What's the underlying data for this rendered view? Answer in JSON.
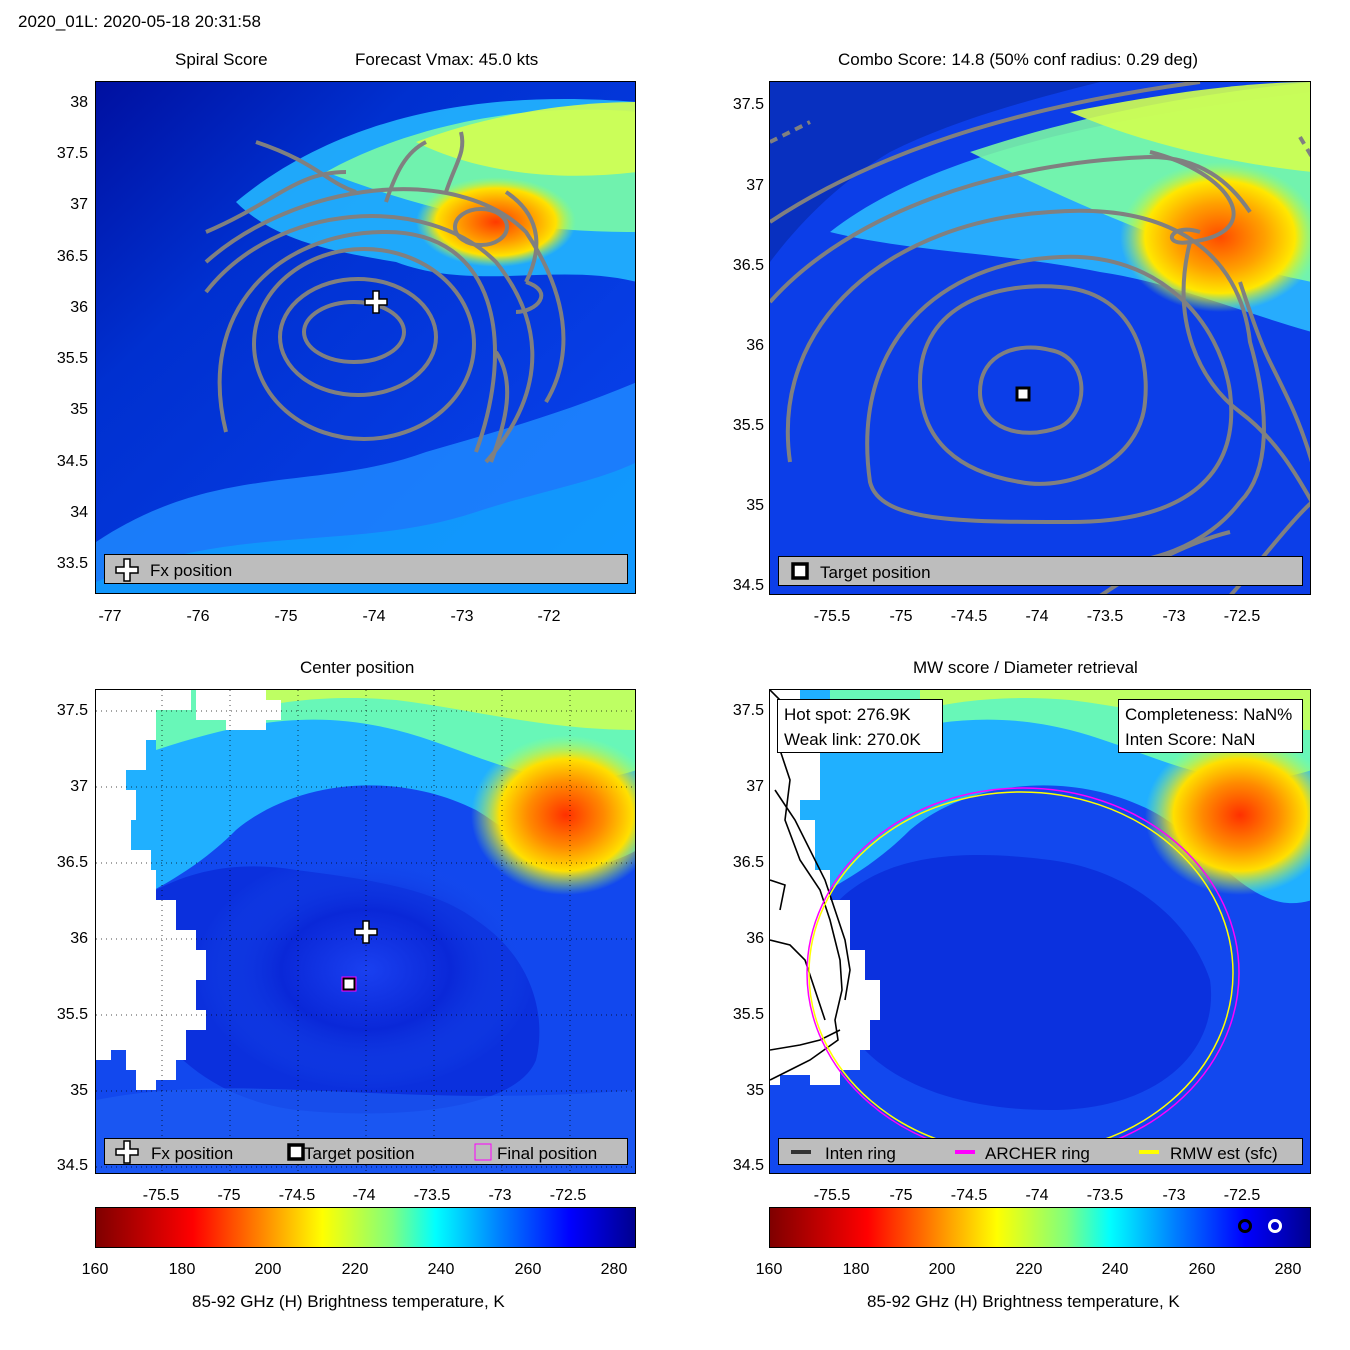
{
  "header": {
    "title": "2020_01L: 2020-05-18 20:31:58"
  },
  "panel_tl": {
    "title_left": "Spiral Score",
    "title_right": "Forecast Vmax: 45.0 kts",
    "yticks": [
      "38",
      "37.5",
      "37",
      "36.5",
      "36",
      "35.5",
      "35",
      "34.5",
      "34",
      "33.5"
    ],
    "xticks": [
      "-77",
      "-76",
      "-75",
      "-74",
      "-73",
      "-72"
    ],
    "legend": "Fx position"
  },
  "panel_tr": {
    "title": "Combo Score: 14.8  (50% conf radius: 0.29 deg)",
    "yticks": [
      "37.5",
      "37",
      "36.5",
      "36",
      "35.5",
      "35",
      "34.5"
    ],
    "xticks": [
      "-75.5",
      "-75",
      "-74.5",
      "-74",
      "-73.5",
      "-73",
      "-72.5"
    ],
    "legend": "Target position"
  },
  "panel_bl": {
    "title": "Center position",
    "yticks": [
      "37.5",
      "37",
      "36.5",
      "36",
      "35.5",
      "35",
      "34.5"
    ],
    "xticks": [
      "-75.5",
      "-75",
      "-74.5",
      "-74",
      "-73.5",
      "-73",
      "-72.5"
    ],
    "legend": [
      "Fx position",
      "Target position",
      "Final position"
    ]
  },
  "panel_br": {
    "title": "MW score / Diameter retrieval",
    "yticks": [
      "37.5",
      "37",
      "36.5",
      "36",
      "35.5",
      "35",
      "34.5"
    ],
    "xticks": [
      "-75.5",
      "-75",
      "-74.5",
      "-74",
      "-73.5",
      "-73",
      "-72.5"
    ],
    "info_left": [
      "Hot spot: 276.9K",
      "Weak link: 270.0K"
    ],
    "info_right": [
      "Completeness: NaN%",
      "Inten Score: NaN"
    ],
    "legend": [
      "Inten ring",
      "ARCHER ring",
      "RMW est (sfc)"
    ]
  },
  "colorbar": {
    "ticks": [
      "160",
      "180",
      "200",
      "220",
      "240",
      "260",
      "280"
    ],
    "label": "85-92 GHz (H) Brightness temperature, K"
  },
  "chart_data": {
    "type": "heatmap",
    "colormap": "jet (reversed)",
    "clim": [
      160,
      285
    ],
    "markers": {
      "fx_position": [
        -74.0,
        36.05
      ],
      "target_position": [
        -74.12,
        35.7
      ]
    },
    "colors": {
      "archer_ring": "#ff00ff",
      "rmw_ring": "#ffff00",
      "inten_ring": "#333333",
      "contour": "#808080"
    }
  }
}
